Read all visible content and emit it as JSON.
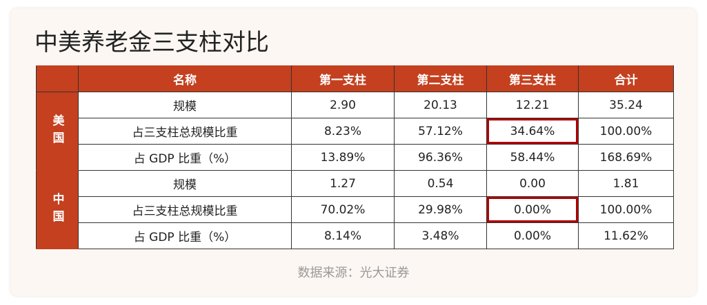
{
  "title": "中美养老金三支柱对比",
  "table": {
    "header": [
      "名称",
      "第一支柱",
      "第二支柱",
      "第三支柱",
      "合计"
    ],
    "groups": [
      {
        "name": "美国",
        "rows": [
          [
            "规模",
            "2.90",
            "20.13",
            "12.21",
            "35.24"
          ],
          [
            "占三支柱总规模比重",
            "8.23%",
            "57.12%",
            "34.64%",
            "100.00%"
          ],
          [
            "占 GDP 比重（%）",
            "13.89%",
            "96.36%",
            "58.44%",
            "168.69%"
          ]
        ]
      },
      {
        "name": "中国",
        "rows": [
          [
            "规模",
            "1.27",
            "0.54",
            "0.00",
            "1.81"
          ],
          [
            "占三支柱总规模比重",
            "70.02%",
            "29.98%",
            "0.00%",
            "100.00%"
          ],
          [
            "占 GDP 比重（%）",
            "8.14%",
            "3.48%",
            "0.00%",
            "11.62%"
          ]
        ]
      }
    ]
  },
  "source": "数据来源：光大证券"
}
